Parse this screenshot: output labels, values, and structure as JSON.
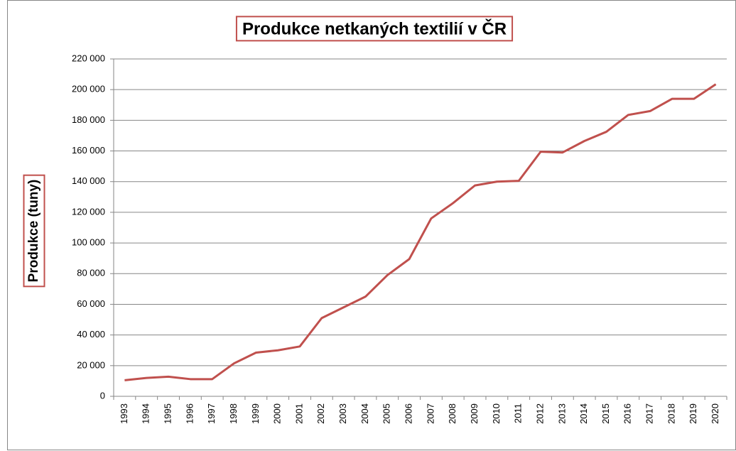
{
  "chart_data": {
    "type": "line",
    "title": "Produkce netkaných textilií v ČR",
    "y_label": "Produkce (tuny)",
    "categories": [
      "1993",
      "1994",
      "1995",
      "1996",
      "1997",
      "1998",
      "1999",
      "2000",
      "2001",
      "2002",
      "2003",
      "2004",
      "2005",
      "2006",
      "2007",
      "2008",
      "2009",
      "2010",
      "2011",
      "2012",
      "2013",
      "2014",
      "2015",
      "2016",
      "2017",
      "2018",
      "2019",
      "2020"
    ],
    "series": [
      {
        "name": "Produkce",
        "color": "#c0504d",
        "values": [
          10500,
          12000,
          12800,
          11200,
          11200,
          21500,
          28500,
          30000,
          32500,
          51000,
          58000,
          65000,
          79000,
          89500,
          116000,
          126000,
          137500,
          140000,
          140500,
          159500,
          159000,
          166500,
          172500,
          183500,
          186000,
          194000,
          194000,
          203500
        ]
      }
    ],
    "ylim": [
      0,
      220000
    ],
    "yticks": [
      0,
      {
        "value": 20000,
        "label": "20 000"
      },
      {
        "value": 40000,
        "label": "40 000"
      },
      {
        "value": 60000,
        "label": "60 000"
      },
      {
        "value": 80000,
        "label": "80 000"
      },
      {
        "value": 100000,
        "label": "100 000"
      },
      {
        "value": 120000,
        "label": "120 000"
      },
      {
        "value": 140000,
        "label": "140 000"
      },
      {
        "value": 160000,
        "label": "160 000"
      },
      {
        "value": 180000,
        "label": "180 000"
      },
      {
        "value": 200000,
        "label": "200 000"
      },
      {
        "value": 220000,
        "label": "220 000"
      }
    ],
    "grid": true,
    "box_color": "#c0504d"
  }
}
